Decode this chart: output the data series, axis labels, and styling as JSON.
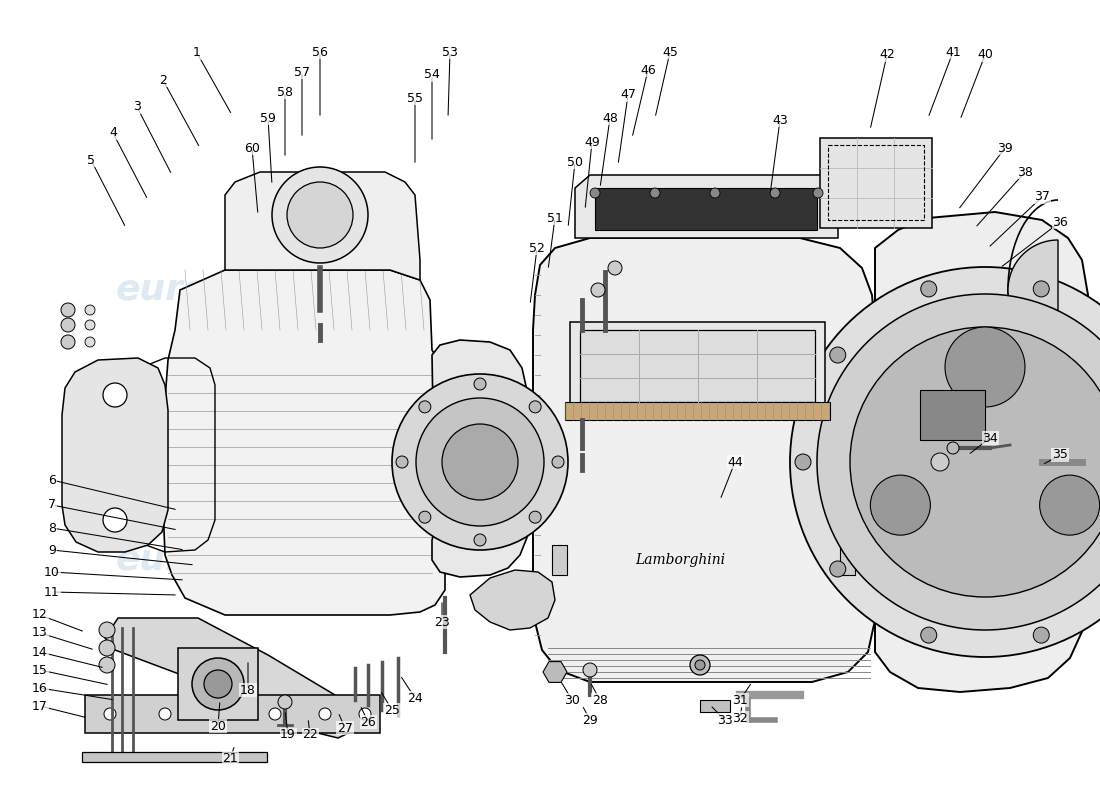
{
  "background_color": "#ffffff",
  "watermark_text": "eurospares",
  "fig_width": 11.0,
  "fig_height": 8.0,
  "dpi": 100,
  "label_fontsize": 9,
  "labels": [
    [
      1,
      197,
      53,
      232,
      115
    ],
    [
      2,
      163,
      80,
      200,
      148
    ],
    [
      3,
      137,
      107,
      172,
      175
    ],
    [
      4,
      113,
      133,
      148,
      200
    ],
    [
      5,
      91,
      160,
      126,
      228
    ],
    [
      6,
      52,
      480,
      178,
      510
    ],
    [
      7,
      52,
      505,
      178,
      530
    ],
    [
      8,
      52,
      528,
      185,
      550
    ],
    [
      9,
      52,
      550,
      195,
      565
    ],
    [
      10,
      52,
      572,
      185,
      580
    ],
    [
      11,
      52,
      592,
      178,
      595
    ],
    [
      12,
      40,
      615,
      85,
      632
    ],
    [
      13,
      40,
      633,
      95,
      650
    ],
    [
      14,
      40,
      652,
      105,
      668
    ],
    [
      15,
      40,
      670,
      110,
      685
    ],
    [
      16,
      40,
      688,
      115,
      700
    ],
    [
      17,
      40,
      706,
      88,
      718
    ],
    [
      18,
      248,
      690,
      248,
      660
    ],
    [
      19,
      288,
      735,
      285,
      710
    ],
    [
      20,
      218,
      726,
      220,
      700
    ],
    [
      21,
      230,
      758,
      235,
      745
    ],
    [
      22,
      310,
      735,
      308,
      718
    ],
    [
      23,
      442,
      622,
      442,
      600
    ],
    [
      24,
      415,
      698,
      400,
      675
    ],
    [
      25,
      392,
      710,
      380,
      690
    ],
    [
      26,
      368,
      722,
      360,
      705
    ],
    [
      27,
      345,
      728,
      338,
      712
    ],
    [
      28,
      600,
      700,
      590,
      682
    ],
    [
      29,
      590,
      720,
      582,
      705
    ],
    [
      30,
      572,
      700,
      560,
      680
    ],
    [
      31,
      740,
      700,
      752,
      682
    ],
    [
      32,
      740,
      718,
      742,
      705
    ],
    [
      33,
      725,
      720,
      710,
      705
    ],
    [
      34,
      990,
      438,
      968,
      455
    ],
    [
      35,
      1060,
      455,
      1042,
      465
    ],
    [
      36,
      1060,
      222,
      1000,
      268
    ],
    [
      37,
      1042,
      197,
      988,
      248
    ],
    [
      38,
      1025,
      172,
      975,
      228
    ],
    [
      39,
      1005,
      148,
      958,
      210
    ],
    [
      40,
      985,
      55,
      960,
      120
    ],
    [
      41,
      953,
      52,
      928,
      118
    ],
    [
      42,
      887,
      55,
      870,
      130
    ],
    [
      43,
      780,
      120,
      770,
      195
    ],
    [
      44,
      735,
      462,
      720,
      500
    ],
    [
      45,
      670,
      52,
      655,
      118
    ],
    [
      46,
      648,
      70,
      632,
      138
    ],
    [
      47,
      628,
      95,
      618,
      165
    ],
    [
      48,
      610,
      118,
      600,
      188
    ],
    [
      49,
      592,
      142,
      585,
      210
    ],
    [
      50,
      575,
      162,
      568,
      228
    ],
    [
      51,
      555,
      218,
      548,
      270
    ],
    [
      52,
      537,
      248,
      530,
      305
    ],
    [
      53,
      450,
      52,
      448,
      118
    ],
    [
      54,
      432,
      75,
      432,
      142
    ],
    [
      55,
      415,
      98,
      415,
      165
    ],
    [
      56,
      320,
      52,
      320,
      118
    ],
    [
      57,
      302,
      72,
      302,
      138
    ],
    [
      58,
      285,
      92,
      285,
      158
    ],
    [
      59,
      268,
      118,
      272,
      185
    ],
    [
      60,
      252,
      148,
      258,
      215
    ]
  ]
}
